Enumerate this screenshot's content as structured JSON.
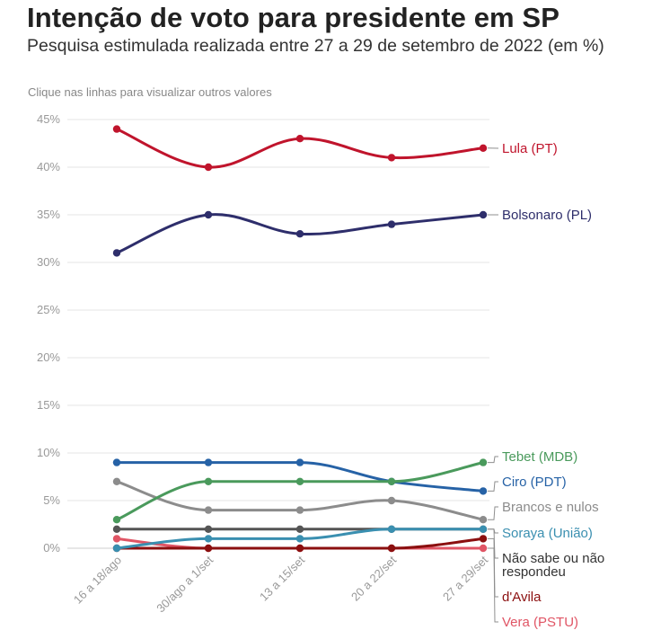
{
  "header": {
    "title": "Intenção de voto para presidente em SP",
    "subtitle": "Pesquisa estimulada realizada entre 27 a 29 de setembro de 2022 (em %)",
    "hint": "Clique nas linhas para visualizar outros valores"
  },
  "chart_data": {
    "type": "line",
    "title": "Intenção de voto para presidente em SP",
    "subtitle": "Pesquisa estimulada realizada entre 27 a 29 de setembro de 2022 (em %)",
    "categories": [
      "16 a 18/ago",
      "30/ago a 1/set",
      "13 a 15/set",
      "20 a 22/set",
      "27 a 29/set"
    ],
    "ylim": [
      0,
      45
    ],
    "yticks": [
      0,
      5,
      10,
      15,
      20,
      25,
      30,
      35,
      40,
      45
    ],
    "ytick_labels": [
      "0%",
      "5%",
      "10%",
      "15%",
      "20%",
      "25%",
      "30%",
      "35%",
      "40%",
      "45%"
    ],
    "grid": true,
    "legend": "end-labels-right",
    "series": [
      {
        "name": "Lula (PT)",
        "values": [
          44,
          40,
          43,
          41,
          42
        ],
        "color": "#c0142c",
        "label_lines": [
          "Lula (PT)"
        ]
      },
      {
        "name": "Bolsonaro (PL)",
        "values": [
          31,
          35,
          33,
          34,
          35
        ],
        "color": "#2e2e6b",
        "label_lines": [
          "Bolsonaro (PL)"
        ]
      },
      {
        "name": "Tebet (MDB)",
        "values": [
          3,
          7,
          7,
          7,
          9
        ],
        "color": "#4a9a5c",
        "label_lines": [
          "Tebet (MDB)"
        ]
      },
      {
        "name": "Ciro (PDT)",
        "values": [
          9,
          9,
          9,
          7,
          6
        ],
        "color": "#2662a6",
        "label_lines": [
          "Ciro (PDT)"
        ]
      },
      {
        "name": "Brancos e nulos",
        "values": [
          7,
          4,
          4,
          5,
          3
        ],
        "color": "#8c8c8c",
        "label_lines": [
          "Brancos e nulos"
        ]
      },
      {
        "name": "Soraya (União)",
        "values": [
          0,
          1,
          1,
          2,
          2
        ],
        "color": "#3a8fb0",
        "label_lines": [
          "Soraya (União)"
        ]
      },
      {
        "name": "Não sabe ou não respondeu",
        "values": [
          2,
          2,
          2,
          2,
          2
        ],
        "color": "#555555",
        "label_lines": [
          "Não sabe ou não",
          "respondeu"
        ]
      },
      {
        "name": "d'Avila",
        "values": [
          0,
          0,
          0,
          0,
          1
        ],
        "color": "#8b0f0f",
        "label_lines": [
          "d'Avila"
        ]
      },
      {
        "name": "Vera (PSTU)",
        "values": [
          1,
          0,
          0,
          0,
          0
        ],
        "color": "#e05565",
        "label_lines": [
          "Vera (PSTU)"
        ]
      }
    ]
  }
}
